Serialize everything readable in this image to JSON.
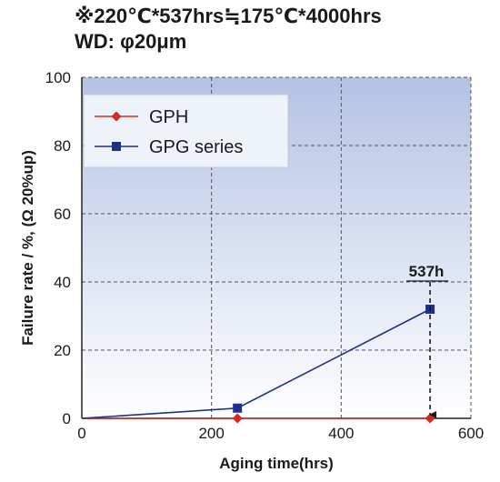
{
  "header": {
    "line1": "※220℃*537hrs≒175℃*4000hrs",
    "line2": "WD: φ20μm"
  },
  "chart_data": {
    "type": "line",
    "title": "",
    "xlabel": "Aging time(hrs)",
    "ylabel": "Failure rate / %, (Ω 20%up)",
    "xlim": [
      0,
      600
    ],
    "ylim": [
      0,
      100
    ],
    "x_ticks": [
      0,
      200,
      400,
      600
    ],
    "y_ticks": [
      0,
      20,
      40,
      60,
      80,
      100
    ],
    "grid": true,
    "legend_position": "top-left",
    "series": [
      {
        "name": "GPH",
        "color": "#d42b20",
        "marker": "diamond",
        "points": [
          [
            0,
            0
          ],
          [
            240,
            0
          ],
          [
            537,
            0
          ]
        ]
      },
      {
        "name": "GPG series",
        "color": "#1f2f8c",
        "marker": "square",
        "points": [
          [
            0,
            0
          ],
          [
            240,
            3
          ],
          [
            537,
            32
          ]
        ]
      }
    ],
    "annotations": [
      {
        "text": "537h",
        "x": 537,
        "y_from": 40,
        "y_to": 0,
        "style": "dashed-arrow"
      }
    ]
  }
}
